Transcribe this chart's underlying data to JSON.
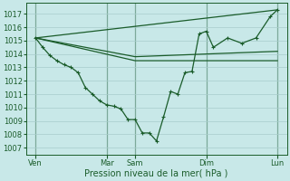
{
  "background_color": "#c8e8e8",
  "grid_color": "#a8cccc",
  "line_color": "#1a5c2a",
  "ylim": [
    1006.5,
    1017.8
  ],
  "yticks": [
    1007,
    1008,
    1009,
    1010,
    1011,
    1012,
    1013,
    1014,
    1015,
    1016,
    1017
  ],
  "day_labels": [
    "Ven",
    "Mar",
    "Sam",
    "Dim",
    "Lun"
  ],
  "day_positions": [
    0,
    60,
    84,
    144,
    204
  ],
  "xlim": [
    -8,
    212
  ],
  "xlabel": "Pression niveau de la mer( hPa )",
  "series1_x": [
    0,
    6,
    12,
    18,
    24,
    30,
    36,
    42,
    48,
    54,
    60,
    66,
    72,
    78,
    84,
    90,
    96,
    102,
    108,
    114,
    120,
    126,
    132,
    138,
    144,
    150,
    162,
    174,
    186,
    198,
    204
  ],
  "series1_y": [
    1015.2,
    1014.5,
    1013.9,
    1013.5,
    1013.2,
    1013.0,
    1012.6,
    1011.5,
    1011.0,
    1010.5,
    1010.2,
    1010.1,
    1009.9,
    1009.1,
    1009.1,
    1008.1,
    1008.1,
    1007.5,
    1009.3,
    1011.2,
    1011.0,
    1012.6,
    1012.7,
    1015.5,
    1015.7,
    1014.5,
    1015.2,
    1014.8,
    1015.2,
    1016.8,
    1017.3
  ],
  "series2_x": [
    0,
    204
  ],
  "series2_y": [
    1015.2,
    1017.3
  ],
  "series3_x": [
    0,
    84,
    204
  ],
  "series3_y": [
    1015.2,
    1013.8,
    1014.2
  ],
  "series4_x": [
    0,
    84,
    204
  ],
  "series4_y": [
    1015.2,
    1013.5,
    1013.5
  ]
}
